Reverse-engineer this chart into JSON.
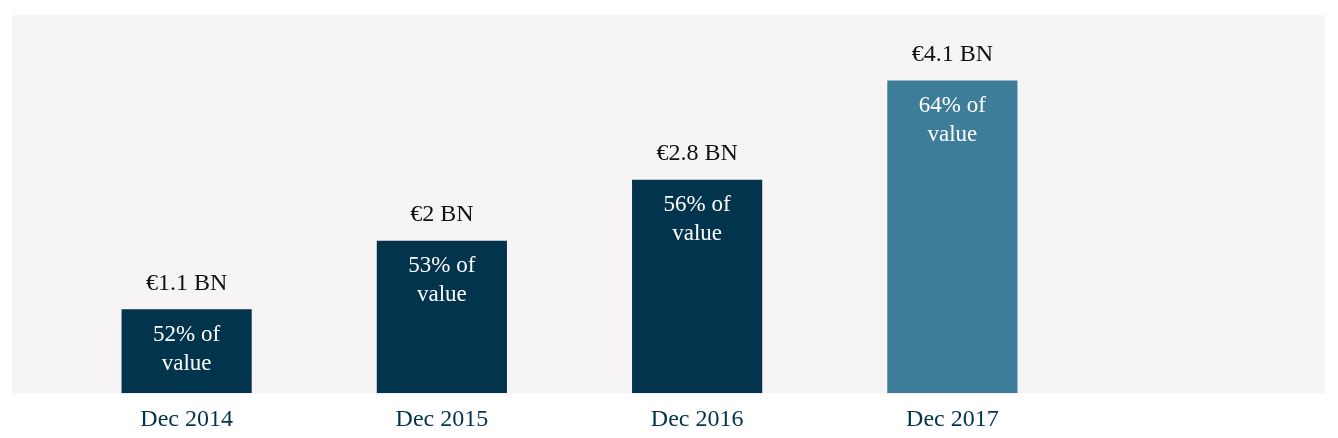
{
  "chart_data": {
    "type": "bar",
    "categories": [
      "Dec 2014",
      "Dec 2015",
      "Dec 2016",
      "Dec 2017"
    ],
    "values": [
      1.1,
      2,
      2.8,
      4.1
    ],
    "colors": [
      "#02344d",
      "#02344d",
      "#02344d",
      "#3e7d99"
    ],
    "value_labels": [
      "€1.1 BN",
      "€2 BN",
      "€2.8 BN",
      "€4.1 BN"
    ],
    "annotations": [
      {
        "text": "52% of value",
        "x": "Dec 2014",
        "y": 1.1
      },
      {
        "text": "53% of value",
        "x": "Dec 2015",
        "y": 2
      },
      {
        "text": "56% of value",
        "x": "Dec 2016",
        "y": 2.8
      },
      {
        "text": "64% of value",
        "x": "Dec 2017",
        "y": 4.1
      }
    ],
    "grid": false,
    "legend": false
  }
}
